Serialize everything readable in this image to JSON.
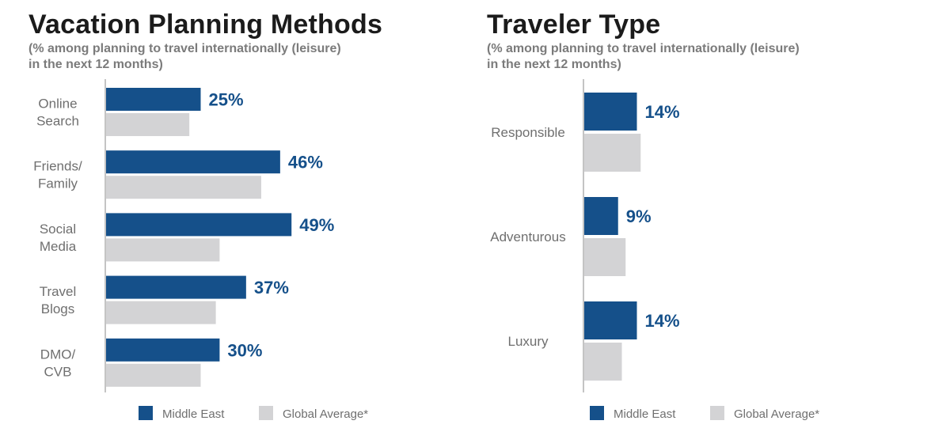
{
  "colors": {
    "primary": "#15508a",
    "secondary": "#d3d3d5",
    "axis": "#8a8a8a"
  },
  "chart_data": [
    {
      "type": "bar",
      "orientation": "horizontal",
      "title": "Vacation Planning Methods",
      "subtitle": "(% among planning to travel internationally (leisure) in the next 12 months)",
      "subtitle_lines": [
        "(% among planning to travel internationally (leisure)",
        "in the next 12 months)"
      ],
      "categories": [
        [
          "Online",
          "Search"
        ],
        [
          "Friends/",
          "Family"
        ],
        [
          "Social",
          "Media"
        ],
        [
          "Travel",
          "Blogs"
        ],
        [
          "DMO/",
          "CVB"
        ]
      ],
      "series": [
        {
          "name": "Middle East",
          "values": [
            25,
            46,
            49,
            37,
            30
          ],
          "labels": [
            "25%",
            "46%",
            "49%",
            "37%",
            "30%"
          ]
        },
        {
          "name": "Global Average*",
          "values": [
            22,
            41,
            30,
            29,
            25
          ]
        }
      ],
      "xlim": [
        0,
        80
      ],
      "grid": false,
      "legend": [
        "Middle East",
        "Global Average*"
      ],
      "legend_placement": "bottom"
    },
    {
      "type": "bar",
      "orientation": "horizontal",
      "title": "Traveler Type",
      "subtitle": "(% among planning to travel internationally (leisure) in the next 12 months)",
      "subtitle_lines": [
        "(% among planning to travel internationally (leisure)",
        "in the next 12 months)"
      ],
      "categories": [
        [
          "Responsible"
        ],
        [
          "Adventurous"
        ],
        [
          "Luxury"
        ]
      ],
      "series": [
        {
          "name": "Middle East",
          "values": [
            14,
            9,
            14
          ],
          "labels": [
            "14%",
            "9%",
            "14%"
          ]
        },
        {
          "name": "Global Average*",
          "values": [
            15,
            11,
            10
          ]
        }
      ],
      "xlim": [
        0,
        80
      ],
      "grid": false,
      "legend": [
        "Middle East",
        "Global Average*"
      ],
      "legend_placement": "bottom"
    }
  ]
}
